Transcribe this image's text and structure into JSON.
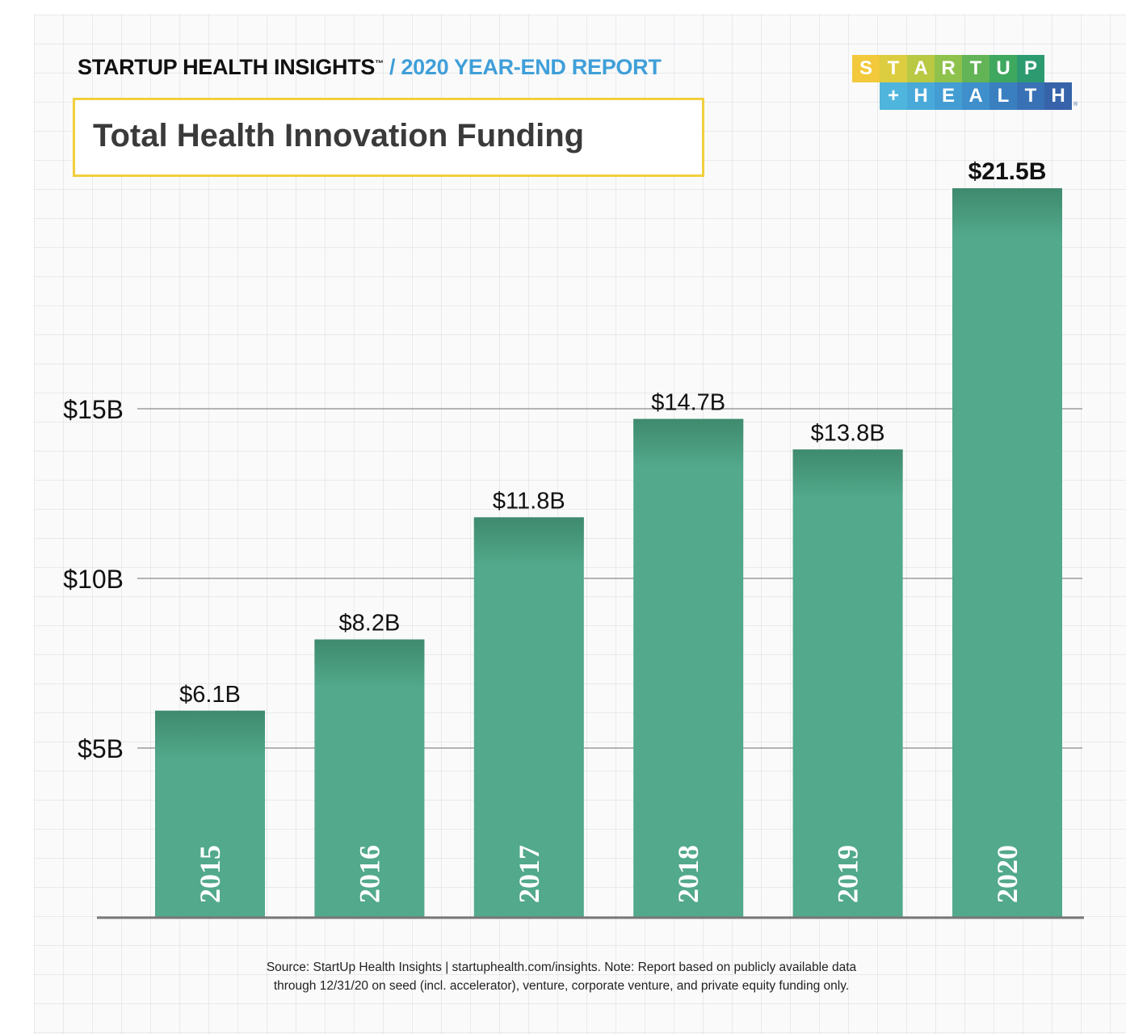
{
  "header": {
    "brand": "STARTUP HEALTH INSIGHTS",
    "trademark": "™",
    "report": "/ 2020 YEAR-END REPORT"
  },
  "logo": {
    "row1": [
      "S",
      "T",
      "A",
      "R",
      "T",
      "U",
      "P"
    ],
    "row2": [
      "+",
      "H",
      "E",
      "A",
      "L",
      "T",
      "H"
    ],
    "registered": "®",
    "row1_colors": [
      "#f2c93a",
      "#dccc3f",
      "#b9c944",
      "#8fc24c",
      "#62b456",
      "#3fa85f",
      "#2d9a70"
    ],
    "row2_colors": [
      "#4fb5dc",
      "#49aad9",
      "#439dd3",
      "#3e8fcb",
      "#3a80c0",
      "#3871b5",
      "#3663a9"
    ]
  },
  "chart_data": {
    "type": "bar",
    "title": "Total Health Innovation Funding",
    "categories": [
      "2015",
      "2016",
      "2017",
      "2018",
      "2019",
      "2020"
    ],
    "values": [
      6.1,
      8.2,
      11.8,
      14.7,
      13.8,
      21.5
    ],
    "data_labels": [
      "$6.1B",
      "$8.2B",
      "$11.8B",
      "$14.7B",
      "$13.8B",
      "$21.5B"
    ],
    "y_ticks": [
      5,
      10,
      15
    ],
    "y_tick_labels": [
      "$5B",
      "$10B",
      "$15B"
    ],
    "ylim": [
      0,
      21.5
    ],
    "grid": true,
    "bar_color": "#52a98b",
    "bar_top_color": "#3f8a6e"
  },
  "source": {
    "line1": "Source: StartUp Health Insights | startuphealth.com/insights. Note: Report based on publicly available data",
    "line2": "through 12/31/20 on seed (incl. accelerator), venture, corporate venture, and private equity funding only."
  }
}
